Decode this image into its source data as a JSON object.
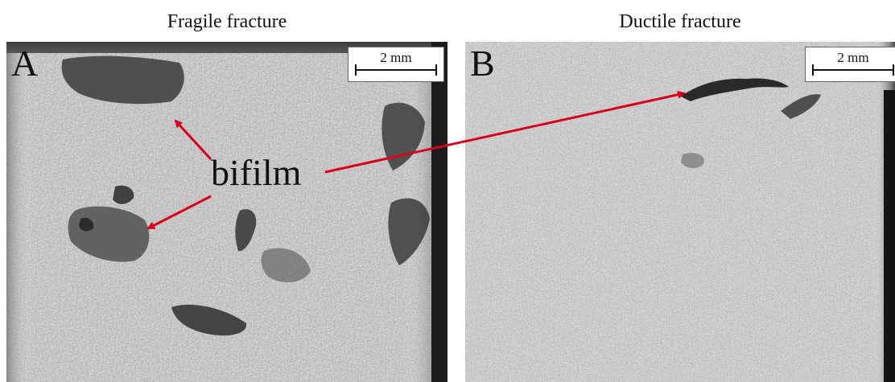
{
  "panel_a": {
    "title": "Fragile fracture",
    "letter": "A",
    "scale_label": "2 mm"
  },
  "panel_b": {
    "title": "Ductile fracture",
    "letter": "B",
    "scale_label": "2 mm"
  },
  "annotation": {
    "label": "bifilm",
    "arrow_color": "#d9001a"
  }
}
